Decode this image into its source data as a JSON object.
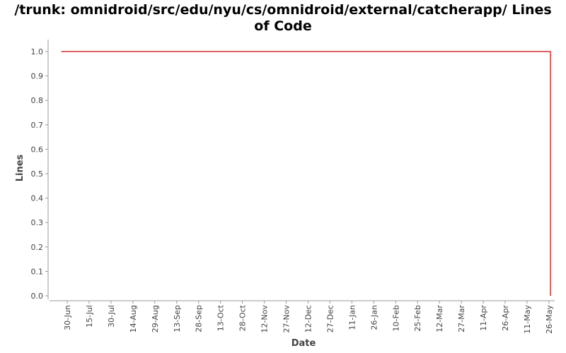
{
  "chart_data": {
    "type": "line",
    "title_lines": [
      "/trunk: omnidroid/src/edu/nyu/cs/omnidroid/external/catcherapp/ Lines",
      "of Code"
    ],
    "xlabel": "Date",
    "ylabel": "Lines",
    "x_tick_labels": [
      "30-Jun",
      "15-Jul",
      "30-Jul",
      "14-Aug",
      "29-Aug",
      "13-Sep",
      "28-Sep",
      "13-Oct",
      "28-Oct",
      "12-Nov",
      "27-Nov",
      "12-Dec",
      "27-Dec",
      "11-Jan",
      "26-Jan",
      "10-Feb",
      "25-Feb",
      "12-Mar",
      "27-Mar",
      "11-Apr",
      "26-Apr",
      "11-May",
      "26-May"
    ],
    "y_ticks": [
      "0.0",
      "0.1",
      "0.2",
      "0.3",
      "0.4",
      "0.5",
      "0.6",
      "0.7",
      "0.8",
      "0.9",
      "1.0"
    ],
    "ylim": [
      0,
      1
    ],
    "grid": false,
    "series": [
      {
        "color": "#cc0000",
        "points": [
          {
            "x": "26-Jun",
            "y": 1.0
          },
          {
            "x": "26-May",
            "y": 1.0
          },
          {
            "x": "26-May",
            "y": 0.0
          }
        ]
      }
    ]
  }
}
